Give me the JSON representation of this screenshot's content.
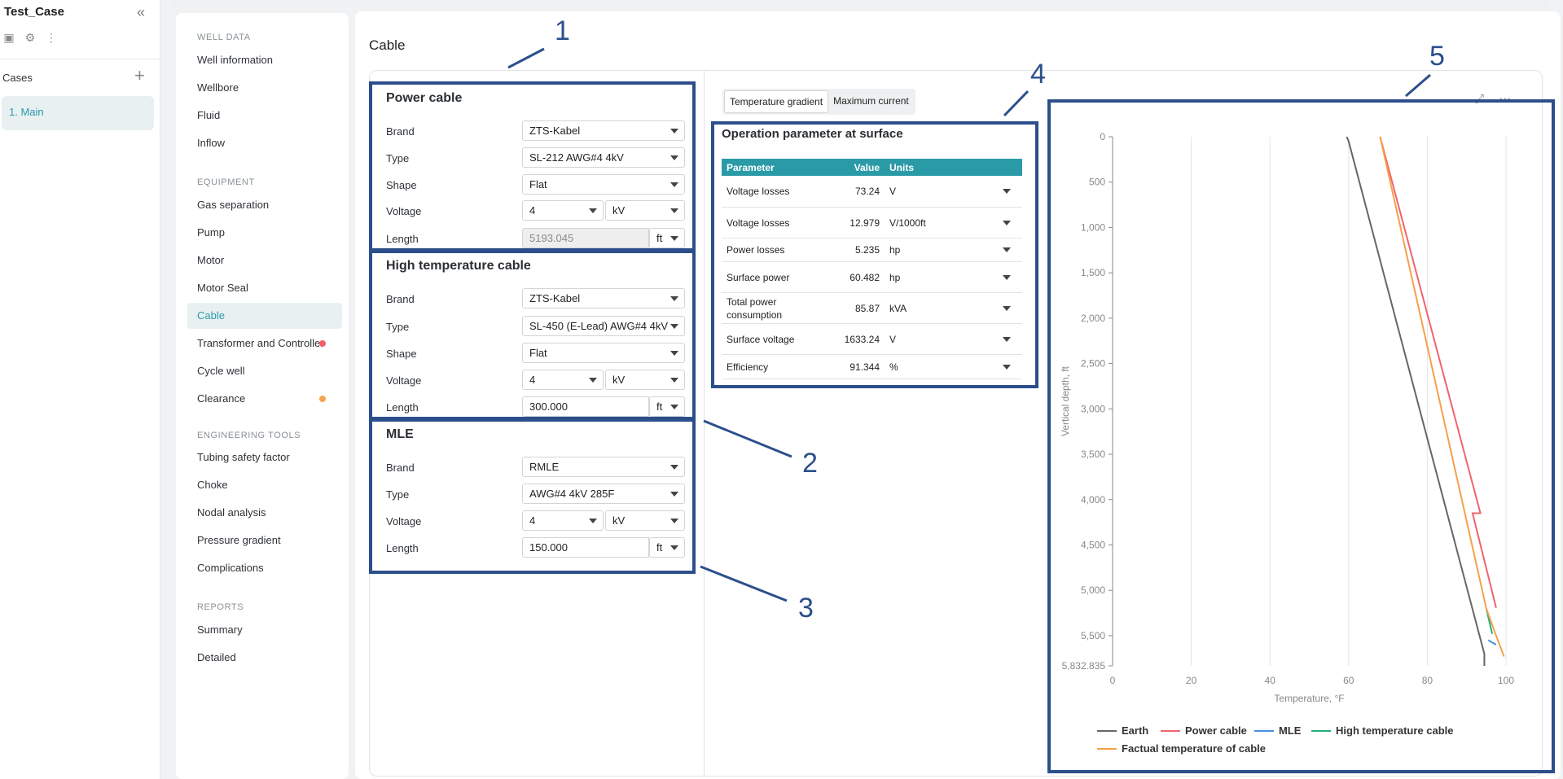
{
  "app": {
    "title": "Test_Case",
    "collapse_icon": "double-chevron-left-icon"
  },
  "cases": {
    "label": "Cases",
    "items": [
      "1. Main"
    ]
  },
  "nav": {
    "well_data": {
      "label": "WELL DATA",
      "items": [
        "Well information",
        "Wellbore",
        "Fluid",
        "Inflow"
      ]
    },
    "equipment": {
      "label": "EQUIPMENT",
      "items": [
        "Gas separation",
        "Pump",
        "Motor",
        "Motor Seal",
        "Cable",
        "Transformer and Controller",
        "Cycle well",
        "Clearance"
      ]
    },
    "engineering": {
      "label": "ENGINEERING TOOLS",
      "items": [
        "Tubing safety factor",
        "Choke",
        "Nodal analysis",
        "Pressure gradient",
        "Complications"
      ]
    },
    "reports": {
      "label": "REPORTS",
      "items": [
        "Summary",
        "Detailed"
      ]
    },
    "active": "Cable",
    "dot_colors": {
      "transformer": "#f25f6a",
      "clearance": "#f5a450"
    }
  },
  "page": {
    "title": "Cable"
  },
  "annotations": [
    "1",
    "2",
    "3",
    "4",
    "5"
  ],
  "power_cable": {
    "title": "Power cable",
    "labels": {
      "brand": "Brand",
      "type": "Type",
      "shape": "Shape",
      "voltage": "Voltage",
      "length": "Length"
    },
    "brand": "ZTS-Kabel",
    "type": "SL-212 AWG#4 4kV",
    "shape": "Flat",
    "voltage": "4",
    "voltage_unit": "kV",
    "length": "5193.045",
    "length_unit": "ft"
  },
  "ht_cable": {
    "title": "High temperature cable",
    "labels": {
      "brand": "Brand",
      "type": "Type",
      "shape": "Shape",
      "voltage": "Voltage",
      "length": "Length"
    },
    "brand": "ZTS-Kabel",
    "type": "SL-450 (E-Lead) AWG#4 4kV",
    "shape": "Flat",
    "voltage": "4",
    "voltage_unit": "kV",
    "length": "300.000",
    "length_unit": "ft"
  },
  "mle": {
    "title": "MLE",
    "labels": {
      "brand": "Brand",
      "type": "Type",
      "voltage": "Voltage",
      "length": "Length"
    },
    "brand": "RMLE",
    "type": "AWG#4 4kV 285F",
    "voltage": "4",
    "voltage_unit": "kV",
    "length": "150.000",
    "length_unit": "ft"
  },
  "toggle": {
    "temperature": "Temperature gradient",
    "current": "Maximum current"
  },
  "operation": {
    "title": "Operation parameter at surface",
    "headers": {
      "parameter": "Parameter",
      "value": "Value",
      "units": "Units"
    },
    "rows": [
      {
        "param": "Voltage losses",
        "value": "73.24",
        "unit": "V"
      },
      {
        "param": "Voltage losses",
        "value": "12.979",
        "unit": "V/1000ft"
      },
      {
        "param": "Power losses",
        "value": "5.235",
        "unit": "hp"
      },
      {
        "param": "Surface power",
        "value": "60.482",
        "unit": "hp"
      },
      {
        "param": "Total power consumption",
        "value": "85.87",
        "unit": "kVA"
      },
      {
        "param": "Surface voltage",
        "value": "1633.24",
        "unit": "V"
      },
      {
        "param": "Efficiency",
        "value": "91.344",
        "unit": "%"
      }
    ]
  },
  "chart_data": {
    "type": "line",
    "xlabel": "Temperature, °F",
    "ylabel": "Vertical depth, ft",
    "xlim": [
      0,
      100
    ],
    "ylim": [
      0,
      5832.835
    ],
    "y_inverted": true,
    "x_ticks": [
      "0",
      "20",
      "40",
      "60",
      "80",
      "100"
    ],
    "x_tick_values": [
      0,
      20,
      40,
      60,
      80,
      100
    ],
    "y_ticks": [
      "0",
      "500",
      "1,000",
      "1,500",
      "2,000",
      "2,500",
      "3,000",
      "3,500",
      "4,000",
      "4,500",
      "5,000",
      "5,500",
      "5,832.835"
    ],
    "y_tick_values": [
      0,
      500,
      1000,
      1500,
      2000,
      2500,
      3000,
      3500,
      4000,
      4500,
      5000,
      5500,
      5832.835
    ],
    "grid": "vertical",
    "legend_position": "bottom-left",
    "series": [
      {
        "name": "Earth",
        "color": "#666666",
        "points": [
          [
            59.5,
            0
          ],
          [
            60,
            50
          ],
          [
            94.5,
            5700
          ],
          [
            94.5,
            5832.835
          ]
        ]
      },
      {
        "name": "Power cable",
        "color": "#f0646e",
        "points": [
          [
            68,
            0
          ],
          [
            93.5,
            4150
          ],
          [
            91.5,
            4150
          ],
          [
            97.5,
            5193
          ]
        ]
      },
      {
        "name": "MLE",
        "color": "#4a8fe0",
        "points": [
          [
            95.5,
            5550
          ],
          [
            97.5,
            5600
          ]
        ]
      },
      {
        "name": "High temperature cable",
        "color": "#22b07a",
        "points": [
          [
            95,
            5200
          ],
          [
            96.5,
            5480
          ]
        ]
      },
      {
        "name": "Factual temperature of cable",
        "color": "#f5a04a",
        "points": [
          [
            68,
            0
          ],
          [
            95,
            5200
          ],
          [
            97.5,
            5500
          ],
          [
            99.5,
            5730
          ]
        ]
      }
    ]
  }
}
